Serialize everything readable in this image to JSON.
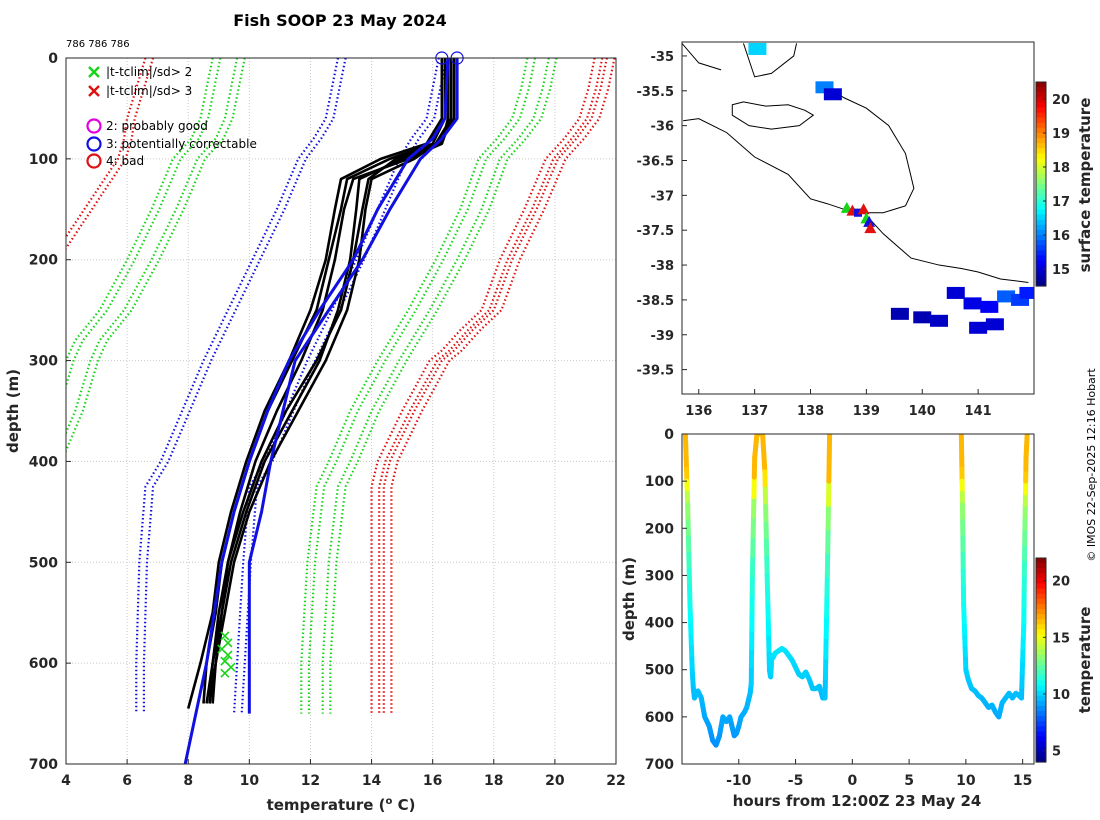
{
  "page": {
    "title": "Fish SOOP 23 May 2024",
    "id_text": "786 786 786",
    "credit": "© IMOS 22-Sep-2025 12:16 Hobart"
  },
  "colors": {
    "green": "#18d418",
    "red": "#e01010",
    "blue": "#1010e0",
    "magenta": "#e000e0",
    "black": "#000000",
    "grid": "#c8c8c8"
  },
  "chart_data": [
    {
      "id": "profile",
      "type": "line",
      "xlabel_prefix": "temperature (",
      "xlabel_sup": "o",
      "xlabel_suffix": " C)",
      "ylabel": "depth (m)",
      "xlim": [
        4,
        22
      ],
      "ylim": [
        700,
        0
      ],
      "xticks": [
        4,
        6,
        8,
        10,
        12,
        14,
        16,
        18,
        20,
        22
      ],
      "yticks": [
        0,
        100,
        200,
        300,
        400,
        500,
        600,
        700
      ],
      "legend": [
        {
          "marker": "x",
          "color": "green",
          "label": "|t-tclim|/sd> 2"
        },
        {
          "marker": "x",
          "color": "red",
          "label": "|t-tclim|/sd> 3"
        },
        {
          "marker": "o",
          "color": "magenta",
          "label": "2: probably good"
        },
        {
          "marker": "o",
          "color": "blue",
          "label": "3: potentially correctable"
        },
        {
          "marker": "o",
          "color": "red",
          "label": "4: bad"
        }
      ],
      "climatology": [
        {
          "color": "red",
          "depth": [
            0,
            30,
            60,
            80,
            100,
            150,
            200,
            250,
            270,
            290,
            300,
            350,
            400,
            425,
            650
          ],
          "temp": [
            7.6,
            7.3,
            7.0,
            6.9,
            6.7,
            5.6,
            4.5,
            3.4,
            2.7,
            2.1,
            2.3,
            1.6,
            0.9,
            0.7,
            0.7
          ],
          "offsets": [
            -1
          ]
        },
        {
          "color": "green",
          "depth": [
            0,
            30,
            60,
            80,
            100,
            150,
            200,
            250,
            280,
            300,
            350,
            400,
            425,
            500,
            600,
            650
          ],
          "temp": [
            9.6,
            9.4,
            9.2,
            8.9,
            8.3,
            7.6,
            6.8,
            5.9,
            5.1,
            4.8,
            4.3,
            3.6,
            3.2,
            2.8,
            2.6,
            2.5
          ],
          "offsets": [
            0,
            -0.8
          ]
        },
        {
          "color": "blue",
          "depth": [
            0,
            30,
            60,
            80,
            100,
            150,
            200,
            250,
            300,
            350,
            400,
            425,
            500,
            600,
            650
          ],
          "temp": [
            12.9,
            12.7,
            12.5,
            12.1,
            11.6,
            10.9,
            10.1,
            9.3,
            8.5,
            7.8,
            7.1,
            6.6,
            6.4,
            6.3,
            6.3
          ],
          "offsets": [
            0
          ]
        },
        {
          "color": "blue",
          "depth": [
            0,
            30,
            60,
            80,
            100,
            150,
            200,
            250,
            300,
            350,
            400,
            425,
            500,
            600,
            650
          ],
          "temp": [
            16.2,
            16.0,
            15.8,
            15.3,
            14.9,
            14.2,
            13.5,
            12.7,
            11.9,
            11.2,
            10.5,
            10.0,
            9.8,
            9.6,
            9.5
          ],
          "offsets": [
            0
          ]
        },
        {
          "color": "green",
          "depth": [
            0,
            30,
            60,
            80,
            100,
            150,
            200,
            250,
            300,
            350,
            400,
            425,
            500,
            600,
            650
          ],
          "temp": [
            19.8,
            19.6,
            19.3,
            18.8,
            18.2,
            17.6,
            16.8,
            15.9,
            14.9,
            14.0,
            13.3,
            12.9,
            12.6,
            12.4,
            12.4
          ],
          "offsets": [
            0,
            -0.7
          ]
        },
        {
          "color": "red",
          "depth": [
            0,
            30,
            60,
            80,
            100,
            150,
            200,
            250,
            270,
            290,
            300,
            350,
            400,
            425,
            500,
            650
          ],
          "temp": [
            21.7,
            21.5,
            21.2,
            20.7,
            20.1,
            19.4,
            18.6,
            18.0,
            17.3,
            16.7,
            16.3,
            15.4,
            14.6,
            14.4,
            14.4,
            14.4
          ],
          "offsets": [
            0,
            -0.4
          ]
        }
      ],
      "profiles_black": [
        {
          "depth": [
            0,
            60,
            85,
            100,
            120,
            150,
            200,
            250,
            300,
            350,
            400,
            450,
            500,
            550,
            600,
            640
          ],
          "temp": [
            16.5,
            16.5,
            16.3,
            15.2,
            13.4,
            13.1,
            12.8,
            12.4,
            11.7,
            10.9,
            10.2,
            9.7,
            9.3,
            9.0,
            8.8,
            8.7
          ]
        },
        {
          "depth": [
            0,
            60,
            85,
            100,
            120,
            150,
            200,
            250,
            300,
            350,
            400,
            450,
            500,
            550,
            600,
            640
          ],
          "temp": [
            16.6,
            16.6,
            16.3,
            15.0,
            13.6,
            13.5,
            13.3,
            12.9,
            12.3,
            11.4,
            10.5,
            9.9,
            9.4,
            9.1,
            8.9,
            8.7
          ]
        },
        {
          "depth": [
            0,
            60,
            85,
            100,
            120,
            150,
            200,
            250,
            300,
            350,
            400,
            450,
            500,
            550,
            600,
            640
          ],
          "temp": [
            16.4,
            16.4,
            16.0,
            14.6,
            13.2,
            13.0,
            12.6,
            12.2,
            11.4,
            10.6,
            10.0,
            9.5,
            9.1,
            8.9,
            8.6,
            8.5
          ]
        },
        {
          "depth": [
            0,
            60,
            85,
            100,
            120,
            150,
            200,
            250,
            300,
            350,
            400,
            450,
            500,
            550,
            600,
            640
          ],
          "temp": [
            16.7,
            16.7,
            16.2,
            14.8,
            13.9,
            13.7,
            13.4,
            13.0,
            12.2,
            11.2,
            10.4,
            9.8,
            9.3,
            9.1,
            8.8,
            8.6
          ]
        },
        {
          "depth": [
            0,
            60,
            85,
            100,
            120,
            150,
            200,
            250,
            300,
            350,
            400,
            450,
            500,
            550,
            600,
            645
          ],
          "temp": [
            16.3,
            16.3,
            15.8,
            14.3,
            13.0,
            12.8,
            12.5,
            12.0,
            11.3,
            10.5,
            9.9,
            9.4,
            9.0,
            8.8,
            8.4,
            8.0
          ]
        },
        {
          "depth": [
            0,
            60,
            85,
            100,
            120,
            150,
            200,
            250,
            300,
            350,
            400,
            450,
            500,
            550,
            600,
            640
          ],
          "temp": [
            16.6,
            16.6,
            16.1,
            15.4,
            14.0,
            13.8,
            13.6,
            13.2,
            12.5,
            11.6,
            10.7,
            10.0,
            9.5,
            9.2,
            8.9,
            8.8
          ]
        }
      ],
      "profiles_blue": [
        {
          "depth": [
            0,
            60,
            80,
            100,
            150,
            200,
            250,
            300,
            350,
            400,
            450,
            500,
            560,
            650
          ],
          "temp": [
            16.8,
            16.8,
            16.3,
            15.6,
            14.6,
            13.7,
            12.6,
            11.5,
            11.1,
            10.7,
            10.4,
            10.0,
            10.0,
            10.0
          ]
        },
        {
          "depth": [
            0,
            60,
            80,
            100,
            150,
            200,
            250,
            300,
            350,
            400,
            450,
            500,
            600,
            700
          ],
          "temp": [
            16.5,
            16.4,
            16.0,
            15.2,
            14.2,
            13.4,
            12.3,
            11.3,
            10.6,
            10.0,
            9.5,
            9.1,
            8.6,
            7.9
          ]
        }
      ],
      "top_markers": [
        {
          "temp": 16.3,
          "depth": 0,
          "color": "blue"
        },
        {
          "temp": 16.8,
          "depth": 0,
          "color": "blue"
        }
      ],
      "flags": [
        {
          "temp": 9.2,
          "depth": 573
        },
        {
          "temp": 9.3,
          "depth": 580
        },
        {
          "temp": 9.1,
          "depth": 586
        },
        {
          "temp": 9.3,
          "depth": 592
        },
        {
          "temp": 9.2,
          "depth": 598
        },
        {
          "temp": 9.4,
          "depth": 604
        },
        {
          "temp": 9.2,
          "depth": 610
        }
      ]
    },
    {
      "id": "map",
      "type": "scatter",
      "xlim": [
        135.7,
        142.0
      ],
      "ylim": [
        -39.85,
        -34.8
      ],
      "xticks": [
        136,
        137,
        138,
        139,
        140,
        141
      ],
      "yticks": [
        -35,
        -35.5,
        -36,
        -36.5,
        -37,
        -37.5,
        -38,
        -38.5,
        -39,
        -39.5
      ],
      "colorbar": {
        "label": "surface temperature",
        "min": 14.5,
        "max": 20.5,
        "ticks": [
          15,
          16,
          17,
          18,
          19,
          20
        ]
      },
      "coast_main": [
        [
          135.72,
          -35.93
        ],
        [
          136.0,
          -35.9
        ],
        [
          136.5,
          -36.1
        ],
        [
          137.0,
          -36.45
        ],
        [
          137.6,
          -36.7
        ],
        [
          138.0,
          -37.05
        ],
        [
          138.3,
          -37.12
        ],
        [
          138.6,
          -37.2
        ],
        [
          138.9,
          -37.2
        ],
        [
          139.3,
          -37.55
        ],
        [
          139.8,
          -37.9
        ],
        [
          140.3,
          -38.0
        ],
        [
          140.7,
          -38.05
        ],
        [
          141.0,
          -38.1
        ],
        [
          141.4,
          -38.2
        ],
        [
          141.9,
          -38.25
        ]
      ],
      "coast_gulf": [
        [
          138.4,
          -35.5
        ],
        [
          138.6,
          -35.6
        ],
        [
          139.0,
          -35.75
        ],
        [
          139.4,
          -36.0
        ],
        [
          139.7,
          -36.4
        ],
        [
          139.85,
          -36.9
        ],
        [
          139.7,
          -37.15
        ],
        [
          139.3,
          -37.25
        ],
        [
          139.0,
          -37.25
        ]
      ],
      "kangaroo_island": [
        [
          136.6,
          -35.7
        ],
        [
          136.8,
          -35.66
        ],
        [
          137.2,
          -35.72
        ],
        [
          137.6,
          -35.7
        ],
        [
          137.9,
          -35.78
        ],
        [
          138.05,
          -35.85
        ],
        [
          137.8,
          -36.0
        ],
        [
          137.3,
          -36.05
        ],
        [
          136.9,
          -36.0
        ],
        [
          136.6,
          -35.85
        ],
        [
          136.6,
          -35.7
        ]
      ],
      "coast_topleft": [
        [
          135.7,
          -34.82
        ],
        [
          136.0,
          -35.1
        ],
        [
          136.4,
          -35.2
        ]
      ],
      "coast_topmid": [
        [
          136.8,
          -34.82
        ],
        [
          137.0,
          -35.3
        ],
        [
          137.3,
          -35.25
        ],
        [
          137.7,
          -35.0
        ],
        [
          137.75,
          -34.82
        ]
      ],
      "ship_track": [
        {
          "lon": 138.65,
          "lat": -37.18,
          "color": "green",
          "marker": "triangle"
        },
        {
          "lon": 138.75,
          "lat": -37.22,
          "color": "red",
          "marker": "triangle"
        },
        {
          "lon": 138.85,
          "lat": -37.25,
          "color": "blue",
          "marker": "square"
        },
        {
          "lon": 138.95,
          "lat": -37.2,
          "color": "red",
          "marker": "triangle"
        },
        {
          "lon": 139.0,
          "lat": -37.33,
          "color": "green",
          "marker": "triangle"
        },
        {
          "lon": 139.05,
          "lat": -37.38,
          "color": "blue",
          "marker": "triangle"
        },
        {
          "lon": 139.07,
          "lat": -37.47,
          "color": "red",
          "marker": "triangle"
        }
      ],
      "sst_patches": [
        {
          "lon": 137.05,
          "lat": -34.9,
          "value": 16.5
        },
        {
          "lon": 138.25,
          "lat": -35.45,
          "value": 16.0
        },
        {
          "lon": 138.4,
          "lat": -35.55,
          "value": 15.0
        },
        {
          "lon": 140.6,
          "lat": -38.4,
          "value": 15.0
        },
        {
          "lon": 140.9,
          "lat": -38.55,
          "value": 15.1
        },
        {
          "lon": 141.2,
          "lat": -38.6,
          "value": 15.2
        },
        {
          "lon": 141.5,
          "lat": -38.45,
          "value": 15.8
        },
        {
          "lon": 141.75,
          "lat": -38.5,
          "value": 15.6
        },
        {
          "lon": 141.9,
          "lat": -38.4,
          "value": 15.4
        },
        {
          "lon": 140.0,
          "lat": -38.75,
          "value": 14.8
        },
        {
          "lon": 140.3,
          "lat": -38.8,
          "value": 14.9
        },
        {
          "lon": 139.6,
          "lat": -38.7,
          "value": 14.8
        },
        {
          "lon": 141.0,
          "lat": -38.9,
          "value": 15.0
        },
        {
          "lon": 141.3,
          "lat": -38.85,
          "value": 15.0
        }
      ]
    },
    {
      "id": "section",
      "type": "line",
      "xlabel": "hours from 12:00Z 23 May 24",
      "ylabel": "depth (m)",
      "xlim": [
        -15,
        16
      ],
      "ylim": [
        700,
        0
      ],
      "xticks": [
        -10,
        -5,
        0,
        5,
        10,
        15
      ],
      "yticks": [
        0,
        100,
        200,
        300,
        400,
        500,
        600,
        700
      ],
      "colorbar": {
        "label": "temperature",
        "min": 4,
        "max": 22,
        "ticks": [
          5,
          10,
          15,
          20
        ]
      },
      "path_hours": [
        -14.7,
        -14.5,
        -14.3,
        -14.1,
        -14.0,
        -13.9,
        -13.6,
        -13.3,
        -13.0,
        -12.6,
        -12.3,
        -12.0,
        -11.7,
        -11.4,
        -11.1,
        -10.8,
        -10.6,
        -10.4,
        -10.2,
        -10.0,
        -9.8,
        -9.5,
        -9.3,
        -9.1,
        -9.0,
        -8.9,
        -8.8,
        -8.6,
        -8.4,
        -8.1,
        -7.9,
        -7.7,
        -7.5,
        -7.3,
        -7.2,
        -7.15,
        -7.1,
        -7.0,
        -6.8,
        -6.5,
        -6.2,
        -5.9,
        -5.6,
        -5.3,
        -5.0,
        -4.7,
        -4.4,
        -4.1,
        -3.8,
        -3.5,
        -3.2,
        -2.9,
        -2.6,
        -2.4,
        -2.2,
        -2.0
      ],
      "path_depths": [
        0,
        150,
        360,
        500,
        540,
        560,
        545,
        560,
        600,
        620,
        650,
        660,
        640,
        600,
        610,
        600,
        620,
        640,
        635,
        620,
        600,
        590,
        580,
        560,
        550,
        530,
        300,
        50,
        0,
        0,
        0,
        80,
        300,
        500,
        515,
        500,
        470,
        475,
        465,
        460,
        455,
        460,
        470,
        480,
        495,
        510,
        515,
        505,
        520,
        540,
        540,
        535,
        560,
        560,
        300,
        0
      ],
      "path2_hours": [
        9.6,
        9.7,
        9.8,
        10.0,
        10.2,
        10.5,
        10.8,
        11.1,
        11.4,
        11.7,
        12.0,
        12.3,
        12.6,
        12.9,
        13.2,
        13.5,
        13.8,
        14.1,
        14.4,
        14.7,
        14.9,
        15.1,
        15.2,
        15.3,
        15.4
      ],
      "path2_depths": [
        0,
        150,
        360,
        500,
        520,
        540,
        545,
        555,
        560,
        570,
        580,
        575,
        590,
        600,
        570,
        560,
        550,
        560,
        550,
        555,
        560,
        400,
        200,
        50,
        0
      ]
    }
  ]
}
